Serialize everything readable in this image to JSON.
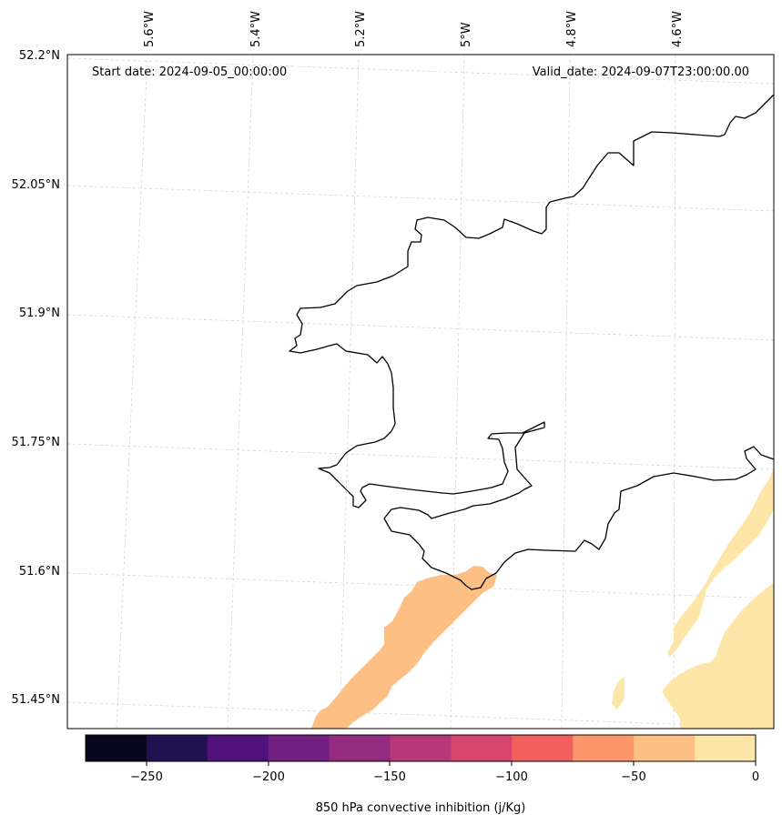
{
  "map": {
    "start_date": "Start date: 2024-09-05_00:00:00",
    "valid_date": "Valid_date: 2024-09-07T23:00:00.00",
    "lon_labels": [
      "5.6°W",
      "5.4°W",
      "5.2°W",
      "5°W",
      "4.8°W",
      "4.6°W"
    ],
    "lat_labels": [
      "52.2°N",
      "52.05°N",
      "51.9°N",
      "51.75°N",
      "51.6°N",
      "51.45°N"
    ]
  },
  "colorbar": {
    "label": "850 hPa convective inhibition (j/Kg)",
    "ticks": [
      "−250",
      "−200",
      "−150",
      "−100",
      "−50",
      "0"
    ],
    "colors": [
      "#07061c",
      "#221150",
      "#4f127b",
      "#721f81",
      "#932b80",
      "#b73779",
      "#d8456c",
      "#f1605d",
      "#fd9668",
      "#febf84",
      "#fde6a8"
    ]
  },
  "field_colors": {
    "band_minus50_minus25": "#febf84",
    "band_minus25_0": "#fde6a8"
  }
}
